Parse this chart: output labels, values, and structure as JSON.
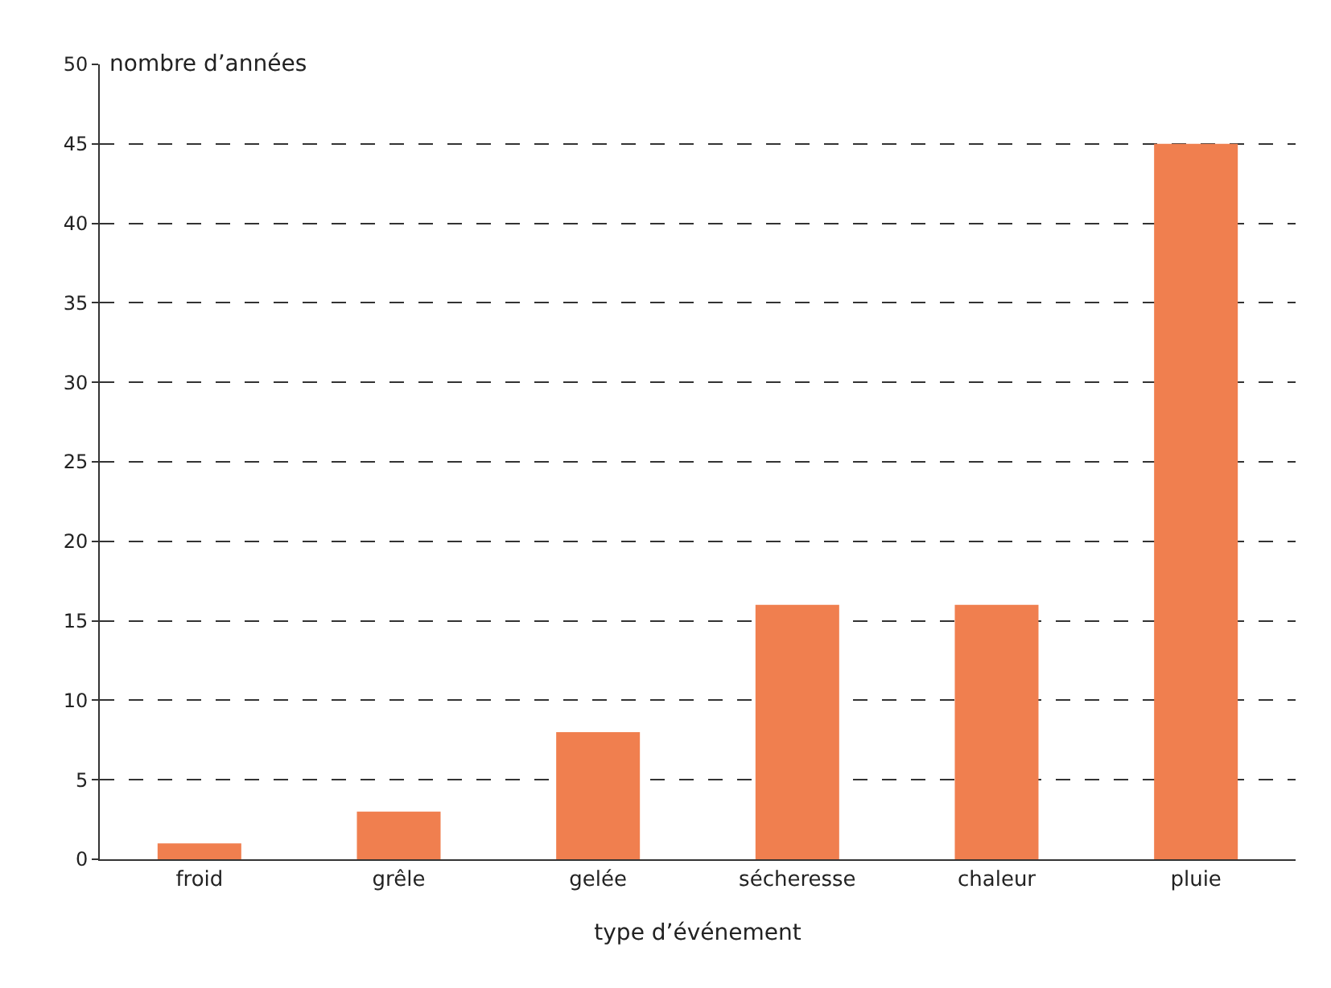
{
  "chart_data": {
    "type": "bar",
    "xlabel": "type d’événement",
    "ylabel": "nombre d’années",
    "categories": [
      "froid",
      "grêle",
      "gelée",
      "sécheresse",
      "chaleur",
      "pluie"
    ],
    "values": [
      1,
      3,
      8,
      16,
      16,
      45
    ],
    "color": "#f07f4f",
    "ylim": [
      0,
      50
    ],
    "yticks": [
      0,
      5,
      10,
      15,
      20,
      25,
      30,
      35,
      40,
      45,
      50
    ],
    "grid": "y"
  }
}
